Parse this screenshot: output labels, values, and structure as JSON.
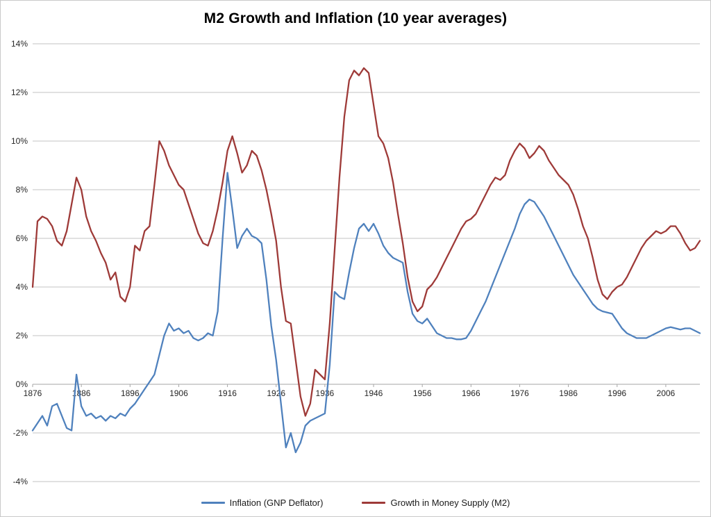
{
  "chart_data": {
    "type": "line",
    "title": "M2 Growth and Inflation (10 year averages)",
    "xlabel": "",
    "ylabel": "",
    "x_range": [
      1876,
      2013
    ],
    "x_step": 1,
    "x_tick_labels": [
      "1876",
      "1886",
      "1896",
      "1906",
      "1916",
      "1926",
      "1936",
      "1946",
      "1956",
      "1966",
      "1976",
      "1986",
      "1996",
      "2006"
    ],
    "x_tick_years": [
      1876,
      1886,
      1896,
      1906,
      1916,
      1926,
      1936,
      1946,
      1956,
      1966,
      1976,
      1986,
      1996,
      2006
    ],
    "ylim": [
      -4,
      14
    ],
    "y_tick_step": 2,
    "y_tick_labels": [
      "-4%",
      "-2%",
      "0%",
      "2%",
      "4%",
      "6%",
      "8%",
      "10%",
      "12%",
      "14%"
    ],
    "grid": "horizontal",
    "legend_position": "bottom-center",
    "series": [
      {
        "name": "Inflation (GNP Deflator)",
        "color": "#4f81bd",
        "values": [
          -1.9,
          -1.6,
          -1.3,
          -1.7,
          -0.9,
          -0.8,
          -1.3,
          -1.8,
          -1.9,
          0.4,
          -0.9,
          -1.3,
          -1.2,
          -1.4,
          -1.3,
          -1.5,
          -1.3,
          -1.4,
          -1.2,
          -1.3,
          -1.0,
          -0.8,
          -0.5,
          -0.2,
          0.1,
          0.4,
          1.2,
          2.0,
          2.5,
          2.2,
          2.3,
          2.1,
          2.2,
          1.9,
          1.8,
          1.9,
          2.1,
          2.0,
          3.0,
          6.0,
          8.7,
          7.2,
          5.6,
          6.1,
          6.4,
          6.1,
          6.0,
          5.8,
          4.3,
          2.4,
          1.0,
          -0.8,
          -2.6,
          -2.0,
          -2.8,
          -2.4,
          -1.7,
          -1.5,
          -1.4,
          -1.3,
          -1.2,
          0.8,
          3.8,
          3.6,
          3.5,
          4.6,
          5.6,
          6.4,
          6.6,
          6.3,
          6.6,
          6.2,
          5.7,
          5.4,
          5.2,
          5.1,
          5.0,
          3.8,
          2.9,
          2.6,
          2.5,
          2.7,
          2.4,
          2.1,
          2.0,
          1.9,
          1.9,
          1.85,
          1.85,
          1.9,
          2.2,
          2.6,
          3.0,
          3.4,
          3.9,
          4.4,
          4.9,
          5.4,
          5.9,
          6.4,
          7.0,
          7.4,
          7.6,
          7.5,
          7.2,
          6.9,
          6.5,
          6.1,
          5.7,
          5.3,
          4.9,
          4.5,
          4.2,
          3.9,
          3.6,
          3.3,
          3.1,
          3.0,
          2.95,
          2.9,
          2.6,
          2.3,
          2.1,
          2.0,
          1.9,
          1.9,
          1.9,
          2.0,
          2.1,
          2.2,
          2.3,
          2.35,
          2.3,
          2.25,
          2.3,
          2.3,
          2.2,
          2.1
        ]
      },
      {
        "name": "Growth in Money Supply (M2)",
        "color": "#9e3a38",
        "values": [
          4.0,
          6.7,
          6.9,
          6.8,
          6.5,
          5.9,
          5.7,
          6.3,
          7.4,
          8.5,
          8.0,
          6.9,
          6.3,
          5.9,
          5.4,
          5.0,
          4.3,
          4.6,
          3.6,
          3.4,
          4.0,
          5.7,
          5.5,
          6.3,
          6.5,
          8.2,
          10.0,
          9.6,
          9.0,
          8.6,
          8.2,
          8.0,
          7.4,
          6.8,
          6.2,
          5.8,
          5.7,
          6.3,
          7.2,
          8.3,
          9.6,
          10.2,
          9.5,
          8.7,
          9.0,
          9.6,
          9.4,
          8.8,
          8.0,
          7.0,
          5.9,
          4.0,
          2.6,
          2.5,
          1.0,
          -0.5,
          -1.3,
          -0.8,
          0.6,
          0.4,
          0.2,
          2.5,
          5.5,
          8.5,
          11.0,
          12.5,
          12.9,
          12.7,
          13.0,
          12.8,
          11.5,
          10.2,
          9.9,
          9.3,
          8.3,
          7.0,
          5.8,
          4.4,
          3.4,
          3.0,
          3.2,
          3.9,
          4.1,
          4.4,
          4.8,
          5.2,
          5.6,
          6.0,
          6.4,
          6.7,
          6.8,
          7.0,
          7.4,
          7.8,
          8.2,
          8.5,
          8.4,
          8.6,
          9.2,
          9.6,
          9.9,
          9.7,
          9.3,
          9.5,
          9.8,
          9.6,
          9.2,
          8.9,
          8.6,
          8.4,
          8.2,
          7.8,
          7.2,
          6.5,
          6.0,
          5.2,
          4.3,
          3.7,
          3.5,
          3.8,
          4.0,
          4.1,
          4.4,
          4.8,
          5.2,
          5.6,
          5.9,
          6.1,
          6.3,
          6.2,
          6.3,
          6.5,
          6.5,
          6.2,
          5.8,
          5.5,
          5.6,
          5.9
        ]
      }
    ],
    "colors": {
      "gridline": "#c3c3c3",
      "zero_axis": "#a6a6a6",
      "axis_text": "#262626",
      "frame_border": "#c9c9c9",
      "background": "#ffffff"
    }
  }
}
